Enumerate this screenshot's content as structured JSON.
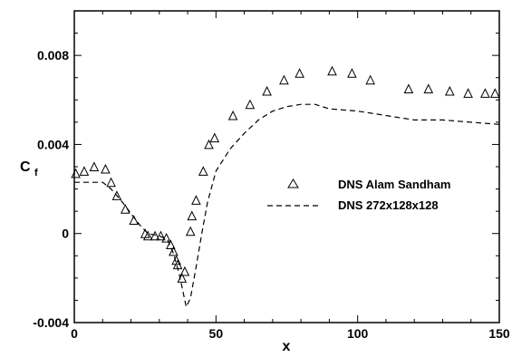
{
  "chart_data": {
    "type": "scatter",
    "title": "",
    "xlabel": "x",
    "ylabel_main": "C",
    "ylabel_sub": "f",
    "xlim": [
      0,
      150
    ],
    "ylim": [
      -0.004,
      0.01
    ],
    "xticks": [
      0,
      50,
      100,
      150
    ],
    "xtick_labels": [
      "0",
      "50",
      "100",
      "150"
    ],
    "yticks": [
      -0.004,
      0,
      0.004,
      0.008
    ],
    "ytick_labels": [
      "-0.004",
      "0",
      "0.004",
      "0.008"
    ],
    "grid": false,
    "legend_position": "right-center",
    "series": [
      {
        "name": "DNS Alam Sandham",
        "kind": "markers",
        "marker": "triangle",
        "color": "#000000",
        "points": [
          [
            0.5,
            0.0027
          ],
          [
            3.5,
            0.0028
          ],
          [
            7,
            0.003
          ],
          [
            11,
            0.0029
          ],
          [
            13,
            0.0023
          ],
          [
            15,
            0.0017
          ],
          [
            18,
            0.0011
          ],
          [
            21,
            0.0006
          ],
          [
            25,
            0.0
          ],
          [
            26,
            -0.0001
          ],
          [
            28.5,
            -0.0001
          ],
          [
            30.5,
            -0.0001
          ],
          [
            32.5,
            -0.0002
          ],
          [
            34,
            -0.0005
          ],
          [
            35,
            -0.0008
          ],
          [
            36,
            -0.0012
          ],
          [
            36.5,
            -0.0014
          ],
          [
            38,
            -0.002
          ],
          [
            39,
            -0.0017
          ],
          [
            41,
            0.0001
          ],
          [
            41.5,
            0.0008
          ],
          [
            43,
            0.0015
          ],
          [
            45.5,
            0.0028
          ],
          [
            47.5,
            0.004
          ],
          [
            49.5,
            0.0043
          ],
          [
            56,
            0.0053
          ],
          [
            62,
            0.0058
          ],
          [
            68,
            0.0064
          ],
          [
            74,
            0.0069
          ],
          [
            79.5,
            0.0072
          ],
          [
            91,
            0.0073
          ],
          [
            98,
            0.0072
          ],
          [
            104.5,
            0.0069
          ],
          [
            118,
            0.0065
          ],
          [
            125,
            0.0065
          ],
          [
            132.5,
            0.0064
          ],
          [
            139,
            0.0063
          ],
          [
            145,
            0.0063
          ],
          [
            148.5,
            0.0063
          ]
        ]
      },
      {
        "name": "DNS 272x128x128",
        "kind": "line",
        "dash": "6,4",
        "color": "#000000",
        "points": [
          [
            0,
            0.0023
          ],
          [
            5,
            0.0023
          ],
          [
            10,
            0.0023
          ],
          [
            13,
            0.002
          ],
          [
            17,
            0.0014
          ],
          [
            20,
            0.0009
          ],
          [
            23,
            0.0004
          ],
          [
            26,
            0.0
          ],
          [
            30,
            -0.0001
          ],
          [
            33,
            -0.0003
          ],
          [
            35,
            -0.0009
          ],
          [
            37,
            -0.0018
          ],
          [
            38.5,
            -0.0027
          ],
          [
            39.5,
            -0.0033
          ],
          [
            41,
            -0.0029
          ],
          [
            43,
            -0.0015
          ],
          [
            45,
            0.0
          ],
          [
            47,
            0.0014
          ],
          [
            50,
            0.0028
          ],
          [
            55,
            0.0038
          ],
          [
            60,
            0.0045
          ],
          [
            65,
            0.0051
          ],
          [
            70,
            0.0055
          ],
          [
            75,
            0.0057
          ],
          [
            80,
            0.0058
          ],
          [
            85,
            0.0058
          ],
          [
            90,
            0.0056
          ],
          [
            100,
            0.0055
          ],
          [
            110,
            0.0053
          ],
          [
            120,
            0.0051
          ],
          [
            130,
            0.0051
          ],
          [
            140,
            0.005
          ],
          [
            150,
            0.0049
          ]
        ]
      }
    ]
  }
}
